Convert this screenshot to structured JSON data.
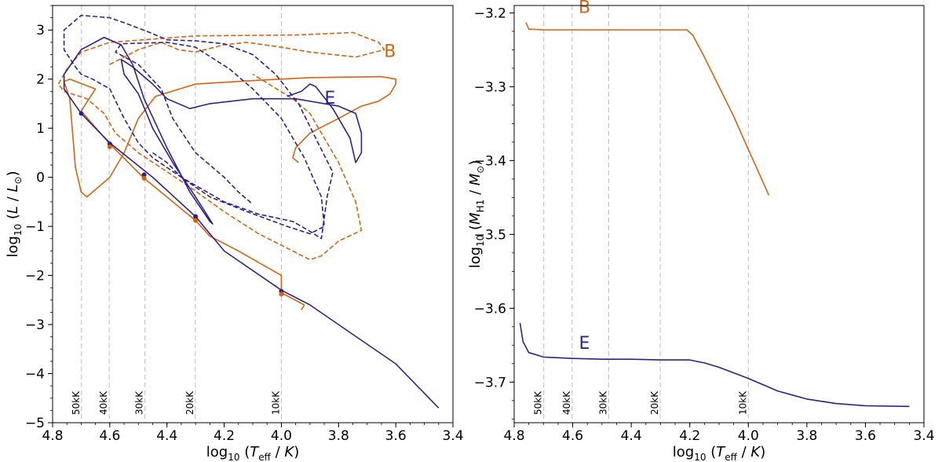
{
  "chart_data": [
    {
      "type": "line",
      "panel": "left",
      "xlabel_prefix": "log",
      "xlabel_sub": "10",
      "xlabel_inner": "T",
      "xlabel_inner_sub": "eff",
      "xlabel_unit": "K",
      "ylabel_prefix": "log",
      "ylabel_sub": "10",
      "ylabel_inner": "L",
      "ylabel_denom": "L",
      "ylabel_denom_sub": "⊙",
      "xlim": [
        4.8,
        3.4
      ],
      "ylim": [
        -5,
        3.5
      ],
      "xticks": [
        4.8,
        4.6,
        4.4,
        4.2,
        4.0,
        3.8,
        3.6,
        3.4
      ],
      "xtick_labels": [
        "4.8",
        "4.6",
        "4.4",
        "4.2",
        "4.0",
        "3.8",
        "3.6",
        "3.4"
      ],
      "yticks": [
        -5,
        -4,
        -3,
        -2,
        -1,
        0,
        1,
        2,
        3
      ],
      "ytick_labels": [
        "−5",
        "−4",
        "−3",
        "−2",
        "−1",
        "0",
        "1",
        "2",
        "3"
      ],
      "temperature_guides": [
        {
          "x": 4.699,
          "label": "50kK"
        },
        {
          "x": 4.602,
          "label": "40kK"
        },
        {
          "x": 4.477,
          "label": "30kK"
        },
        {
          "x": 4.301,
          "label": "20kK"
        },
        {
          "x": 4.0,
          "label": "10kK"
        }
      ],
      "annotations": [
        {
          "text": "B",
          "x": 3.62,
          "y": 2.45,
          "color": "#d9620e"
        },
        {
          "text": "E",
          "x": 3.83,
          "y": 1.5,
          "color": "#33218a"
        }
      ],
      "series": [
        {
          "name": "B",
          "style": "solid",
          "color": "#d9620e",
          "points": [
            [
              3.94,
              0.3
            ],
            [
              3.96,
              0.4
            ],
            [
              3.95,
              0.6
            ],
            [
              3.9,
              0.9
            ],
            [
              3.8,
              1.2
            ],
            [
              3.72,
              1.45
            ],
            [
              3.66,
              1.55
            ],
            [
              3.62,
              1.7
            ],
            [
              3.6,
              1.9
            ],
            [
              3.6,
              2.0
            ],
            [
              3.65,
              2.05
            ],
            [
              3.9,
              2.03
            ],
            [
              4.1,
              1.97
            ],
            [
              4.3,
              1.9
            ],
            [
              4.44,
              1.65
            ],
            [
              4.5,
              1.2
            ],
            [
              4.55,
              0.5
            ],
            [
              4.6,
              0.0
            ],
            [
              4.68,
              -0.4
            ],
            [
              4.7,
              -0.3
            ],
            [
              4.72,
              0.2
            ],
            [
              4.73,
              0.9
            ],
            [
              4.74,
              1.6
            ],
            [
              4.76,
              1.95
            ],
            [
              4.74,
              2.0
            ],
            [
              4.65,
              1.8
            ],
            [
              4.7,
              1.35
            ],
            [
              4.6,
              0.68
            ],
            [
              4.48,
              -0.02
            ],
            [
              4.3,
              -0.88
            ],
            [
              4.25,
              -1.2
            ],
            [
              4.15,
              -1.5
            ],
            [
              4.0,
              -2.0
            ],
            [
              4.0,
              -2.35
            ],
            [
              3.92,
              -2.6
            ],
            [
              3.93,
              -2.7
            ]
          ]
        },
        {
          "name": "B-dashed",
          "style": "dashed",
          "color": "#d9620e",
          "points": [
            [
              4.6,
              2.3
            ],
            [
              4.5,
              2.6
            ],
            [
              4.42,
              2.75
            ],
            [
              4.36,
              2.6
            ],
            [
              4.3,
              2.55
            ],
            [
              4.2,
              2.7
            ],
            [
              4.12,
              2.75
            ],
            [
              4.0,
              2.65
            ],
            [
              3.9,
              2.55
            ],
            [
              3.74,
              2.45
            ],
            [
              3.64,
              2.6
            ],
            [
              3.66,
              2.75
            ],
            [
              3.75,
              2.95
            ],
            [
              3.95,
              2.9
            ],
            [
              4.3,
              2.88
            ],
            [
              4.6,
              2.75
            ],
            [
              4.7,
              2.55
            ],
            [
              4.75,
              2.2
            ],
            [
              4.78,
              1.9
            ],
            [
              4.76,
              1.75
            ],
            [
              4.68,
              1.6
            ],
            [
              4.62,
              1.3
            ],
            [
              4.58,
              0.9
            ],
            [
              4.5,
              0.5
            ],
            [
              4.32,
              -0.2
            ],
            [
              4.2,
              -0.7
            ],
            [
              4.08,
              -1.15
            ],
            [
              3.96,
              -1.5
            ],
            [
              3.9,
              -1.68
            ],
            [
              3.86,
              -1.6
            ],
            [
              3.84,
              -1.5
            ],
            [
              3.8,
              -1.3
            ],
            [
              3.72,
              -1.08
            ],
            [
              3.74,
              -0.5
            ],
            [
              3.8,
              0.3
            ],
            [
              3.86,
              0.9
            ],
            [
              3.9,
              1.3
            ],
            [
              3.96,
              1.6
            ],
            [
              4.1,
              2.1
            ]
          ]
        },
        {
          "name": "E",
          "style": "solid",
          "color": "#33218a",
          "points": [
            [
              3.45,
              -4.7
            ],
            [
              3.6,
              -3.8
            ],
            [
              3.75,
              -3.2
            ],
            [
              3.9,
              -2.6
            ],
            [
              4.0,
              -2.3
            ],
            [
              4.2,
              -1.5
            ],
            [
              4.3,
              -0.8
            ],
            [
              4.45,
              0.0
            ],
            [
              4.6,
              0.7
            ],
            [
              4.7,
              1.3
            ],
            [
              4.76,
              1.8
            ],
            [
              4.76,
              2.1
            ],
            [
              4.7,
              2.6
            ],
            [
              4.62,
              2.85
            ],
            [
              4.56,
              2.7
            ],
            [
              4.52,
              2.3
            ],
            [
              4.48,
              1.6
            ],
            [
              4.4,
              0.6
            ],
            [
              4.32,
              -0.3
            ],
            [
              4.25,
              -0.9
            ],
            [
              4.24,
              -0.95
            ],
            [
              4.3,
              -0.4
            ],
            [
              4.38,
              0.3
            ],
            [
              4.45,
              1.0
            ],
            [
              4.5,
              1.7
            ],
            [
              4.55,
              2.1
            ],
            [
              4.56,
              2.4
            ],
            [
              4.52,
              2.25
            ],
            [
              4.45,
              1.9
            ],
            [
              4.4,
              1.6
            ],
            [
              4.32,
              1.4
            ],
            [
              4.25,
              1.5
            ],
            [
              4.1,
              1.6
            ],
            [
              3.95,
              1.6
            ],
            [
              3.8,
              1.45
            ],
            [
              3.74,
              1.3
            ],
            [
              3.72,
              0.9
            ],
            [
              3.72,
              0.5
            ],
            [
              3.74,
              0.3
            ],
            [
              3.76,
              0.8
            ],
            [
              3.82,
              1.4
            ],
            [
              3.88,
              1.85
            ],
            [
              3.9,
              1.9
            ],
            [
              3.93,
              1.75
            ],
            [
              3.98,
              1.65
            ]
          ]
        },
        {
          "name": "E-dashed",
          "style": "dashed",
          "color": "#33218a",
          "points": [
            [
              4.45,
              0.5
            ],
            [
              4.4,
              0.3
            ],
            [
              4.35,
              0.0
            ],
            [
              4.2,
              -0.5
            ],
            [
              4.08,
              -0.75
            ],
            [
              3.96,
              -0.9
            ],
            [
              3.9,
              -1.1
            ],
            [
              3.86,
              -1.25
            ],
            [
              3.84,
              -0.4
            ],
            [
              3.82,
              0.1
            ],
            [
              3.88,
              0.8
            ],
            [
              3.94,
              1.5
            ],
            [
              4.02,
              2.1
            ],
            [
              4.1,
              2.5
            ],
            [
              4.2,
              2.72
            ],
            [
              4.3,
              2.78
            ],
            [
              4.4,
              2.8
            ],
            [
              4.46,
              2.95
            ],
            [
              4.55,
              3.15
            ],
            [
              4.6,
              3.25
            ],
            [
              4.7,
              3.3
            ],
            [
              4.76,
              3.0
            ],
            [
              4.76,
              2.6
            ],
            [
              4.72,
              2.25
            ],
            [
              4.7,
              2.1
            ],
            [
              4.66,
              2.0
            ],
            [
              4.6,
              1.8
            ],
            [
              4.55,
              1.2
            ],
            [
              4.5,
              0.7
            ],
            [
              4.45,
              0.4
            ],
            [
              4.35,
              0.0
            ],
            [
              4.25,
              -0.4
            ],
            [
              4.12,
              -0.7
            ],
            [
              3.98,
              -1.0
            ],
            [
              3.9,
              -1.15
            ],
            [
              3.85,
              -1.0
            ],
            [
              3.86,
              -0.4
            ],
            [
              3.92,
              0.4
            ],
            [
              4.0,
              1.2
            ],
            [
              4.1,
              1.8
            ],
            [
              4.18,
              2.2
            ],
            [
              4.26,
              2.5
            ],
            [
              4.3,
              2.65
            ],
            [
              4.4,
              2.75
            ],
            [
              4.56,
              2.72
            ],
            [
              4.58,
              2.55
            ],
            [
              4.5,
              2.3
            ],
            [
              4.42,
              1.8
            ],
            [
              4.38,
              1.2
            ],
            [
              4.3,
              0.5
            ],
            [
              4.2,
              0.0
            ],
            [
              4.15,
              -0.3
            ],
            [
              4.1,
              -0.55
            ]
          ]
        }
      ],
      "markers": [
        {
          "x": 4.7,
          "y": 1.3,
          "color": "#33218a"
        },
        {
          "x": 4.6,
          "y": 0.68,
          "color": "#33218a"
        },
        {
          "x": 4.6,
          "y": 0.62,
          "color": "#d9620e"
        },
        {
          "x": 4.48,
          "y": 0.05,
          "color": "#33218a"
        },
        {
          "x": 4.48,
          "y": -0.02,
          "color": "#d9620e"
        },
        {
          "x": 4.3,
          "y": -0.8,
          "color": "#33218a"
        },
        {
          "x": 4.3,
          "y": -0.88,
          "color": "#d9620e"
        },
        {
          "x": 4.0,
          "y": -2.32,
          "color": "#33218a"
        },
        {
          "x": 4.0,
          "y": -2.38,
          "color": "#d9620e"
        }
      ]
    },
    {
      "type": "line",
      "panel": "right",
      "xlabel_prefix": "log",
      "xlabel_sub": "10",
      "xlabel_inner": "T",
      "xlabel_inner_sub": "eff",
      "xlabel_unit": "K",
      "ylabel_prefix": "log",
      "ylabel_sub": "10",
      "ylabel_inner": "M",
      "ylabel_inner_sub": "H1",
      "ylabel_denom": "M",
      "ylabel_denom_sub": "⊙",
      "xlim": [
        4.8,
        3.4
      ],
      "ylim": [
        -3.755,
        -3.19
      ],
      "xticks": [
        4.8,
        4.6,
        4.4,
        4.2,
        4.0,
        3.8,
        3.6,
        3.4
      ],
      "xtick_labels": [
        "4.8",
        "4.6",
        "4.4",
        "4.2",
        "4.0",
        "3.8",
        "3.6",
        "3.4"
      ],
      "yticks": [
        -3.7,
        -3.6,
        -3.5,
        -3.4,
        -3.3,
        -3.2
      ],
      "ytick_labels": [
        "−3.7",
        "−3.6",
        "−3.5",
        "−3.4",
        "−3.3",
        "−3.2"
      ],
      "temperature_guides": [
        {
          "x": 4.699,
          "label": "50kK"
        },
        {
          "x": 4.602,
          "label": "40kK"
        },
        {
          "x": 4.477,
          "label": "30kK"
        },
        {
          "x": 4.301,
          "label": "20kK"
        },
        {
          "x": 4.0,
          "label": "10kK"
        }
      ],
      "annotations": [
        {
          "text": "B",
          "x": 4.56,
          "y": -3.2,
          "color": "#d9620e"
        },
        {
          "text": "E",
          "x": 4.56,
          "y": -3.655,
          "color": "#33218a"
        }
      ],
      "series": [
        {
          "name": "B",
          "style": "solid",
          "color": "#d9620e",
          "points": [
            [
              4.76,
              -3.213
            ],
            [
              4.75,
              -3.222
            ],
            [
              4.7,
              -3.223
            ],
            [
              4.5,
              -3.223
            ],
            [
              4.3,
              -3.223
            ],
            [
              4.21,
              -3.223
            ],
            [
              4.19,
              -3.23
            ],
            [
              4.15,
              -3.26
            ],
            [
              4.1,
              -3.3
            ],
            [
              4.05,
              -3.34
            ],
            [
              4.0,
              -3.385
            ],
            [
              3.96,
              -3.42
            ],
            [
              3.93,
              -3.447
            ]
          ]
        },
        {
          "name": "E",
          "style": "solid",
          "color": "#33218a",
          "points": [
            [
              4.78,
              -3.62
            ],
            [
              4.77,
              -3.645
            ],
            [
              4.75,
              -3.66
            ],
            [
              4.7,
              -3.666
            ],
            [
              4.6,
              -3.668
            ],
            [
              4.5,
              -3.669
            ],
            [
              4.4,
              -3.669
            ],
            [
              4.3,
              -3.67
            ],
            [
              4.2,
              -3.67
            ],
            [
              4.15,
              -3.674
            ],
            [
              4.1,
              -3.68
            ],
            [
              4.0,
              -3.695
            ],
            [
              3.9,
              -3.712
            ],
            [
              3.8,
              -3.723
            ],
            [
              3.7,
              -3.729
            ],
            [
              3.6,
              -3.732
            ],
            [
              3.45,
              -3.733
            ]
          ]
        }
      ]
    }
  ]
}
